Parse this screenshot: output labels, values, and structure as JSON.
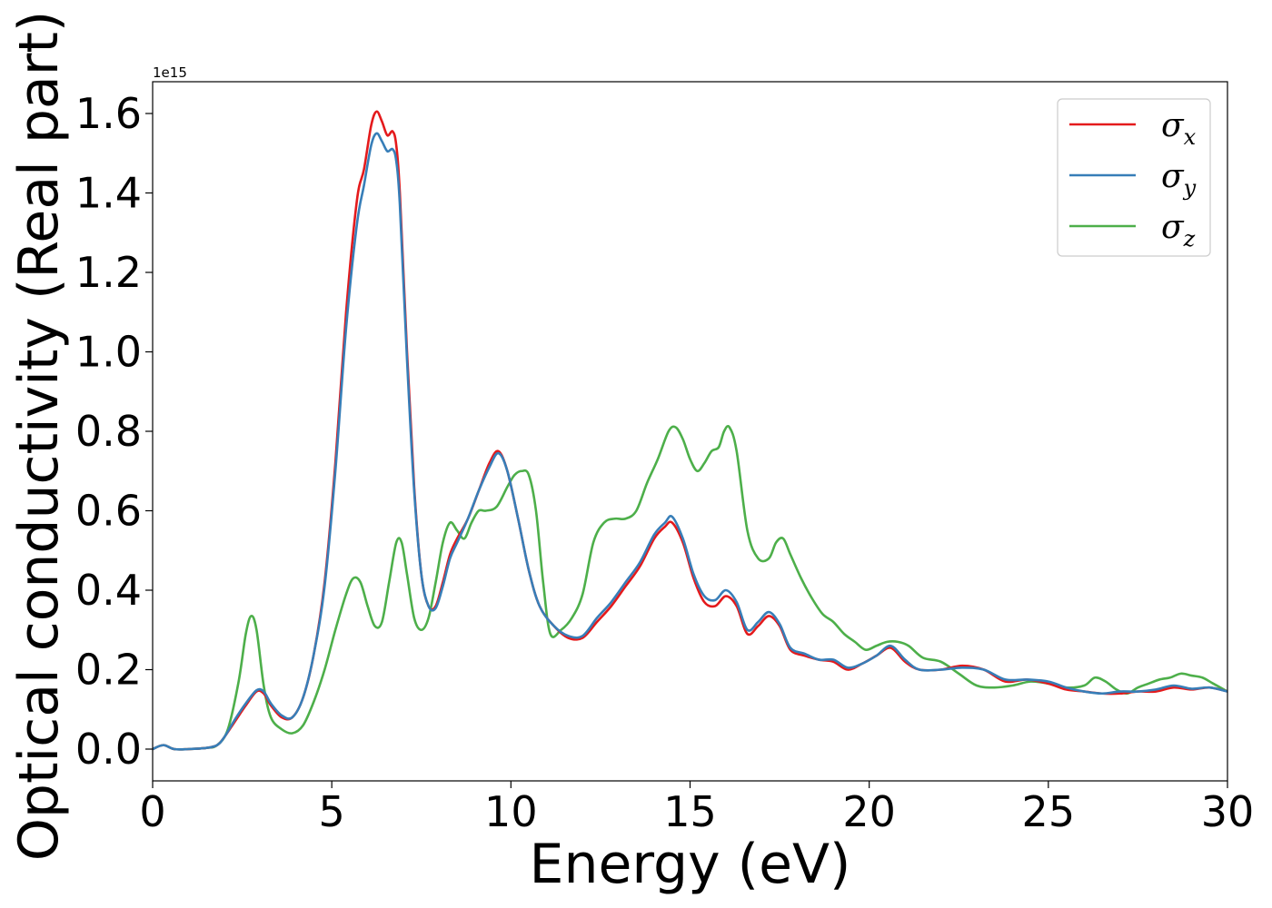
{
  "chart_data": {
    "type": "line",
    "xlabel": "Energy (eV)",
    "ylabel": "Optical conductivity (Real part)",
    "y_offset_text": "1e15",
    "xlim": [
      0,
      30
    ],
    "ylim": [
      -0.08,
      1.68
    ],
    "xticks": [
      0,
      5,
      10,
      15,
      20,
      25,
      30
    ],
    "xtick_labels": [
      "0",
      "5",
      "10",
      "15",
      "20",
      "25",
      "30"
    ],
    "yticks": [
      0.0,
      0.2,
      0.4,
      0.6,
      0.8,
      1.0,
      1.2,
      1.4,
      1.6
    ],
    "ytick_labels": [
      "0.0",
      "0.2",
      "0.4",
      "0.6",
      "0.8",
      "1.0",
      "1.2",
      "1.4",
      "1.6"
    ],
    "grid": false,
    "legend_position": "top-right",
    "series": [
      {
        "name": "σx",
        "legend_main": "σ",
        "legend_sub": "x",
        "color": "#e41a1c",
        "x": [
          0,
          0.3,
          0.6,
          1.0,
          1.5,
          1.8,
          2.0,
          2.3,
          2.6,
          2.9,
          3.1,
          3.3,
          3.6,
          3.9,
          4.2,
          4.5,
          4.8,
          5.1,
          5.4,
          5.7,
          5.9,
          6.1,
          6.25,
          6.4,
          6.55,
          6.7,
          6.8,
          6.9,
          7.1,
          7.3,
          7.5,
          7.7,
          7.9,
          8.1,
          8.3,
          8.5,
          8.8,
          9.1,
          9.4,
          9.65,
          9.9,
          10.2,
          10.5,
          10.8,
          11.2,
          11.6,
          12.0,
          12.4,
          12.8,
          13.2,
          13.6,
          14.0,
          14.3,
          14.5,
          14.8,
          15.1,
          15.4,
          15.7,
          16.0,
          16.3,
          16.6,
          16.9,
          17.2,
          17.5,
          17.8,
          18.2,
          18.6,
          19.0,
          19.4,
          19.8,
          20.2,
          20.6,
          21.0,
          21.4,
          22.0,
          22.6,
          23.2,
          23.8,
          24.4,
          25.0,
          25.5,
          26.0,
          26.5,
          27.0,
          27.5,
          28.0,
          28.5,
          29.0,
          29.5,
          30.0
        ],
        "y": [
          0,
          0.01,
          0.0,
          0.0,
          0.003,
          0.01,
          0.03,
          0.07,
          0.11,
          0.145,
          0.14,
          0.11,
          0.08,
          0.08,
          0.13,
          0.24,
          0.42,
          0.72,
          1.1,
          1.38,
          1.46,
          1.57,
          1.605,
          1.58,
          1.545,
          1.555,
          1.52,
          1.4,
          1.0,
          0.66,
          0.44,
          0.36,
          0.36,
          0.42,
          0.49,
          0.53,
          0.58,
          0.65,
          0.72,
          0.75,
          0.7,
          0.58,
          0.45,
          0.36,
          0.31,
          0.28,
          0.28,
          0.32,
          0.36,
          0.41,
          0.46,
          0.53,
          0.56,
          0.57,
          0.52,
          0.43,
          0.37,
          0.36,
          0.385,
          0.36,
          0.29,
          0.31,
          0.335,
          0.31,
          0.25,
          0.235,
          0.225,
          0.22,
          0.2,
          0.215,
          0.235,
          0.255,
          0.22,
          0.2,
          0.2,
          0.21,
          0.2,
          0.17,
          0.175,
          0.165,
          0.15,
          0.145,
          0.14,
          0.14,
          0.145,
          0.145,
          0.155,
          0.15,
          0.155,
          0.145
        ]
      },
      {
        "name": "σy",
        "legend_main": "σ",
        "legend_sub": "y",
        "color": "#377eb8",
        "x": [
          0,
          0.3,
          0.6,
          1.0,
          1.5,
          1.8,
          2.0,
          2.3,
          2.6,
          2.9,
          3.1,
          3.3,
          3.6,
          3.9,
          4.2,
          4.5,
          4.8,
          5.1,
          5.4,
          5.7,
          5.9,
          6.1,
          6.25,
          6.4,
          6.55,
          6.7,
          6.8,
          6.9,
          7.1,
          7.3,
          7.5,
          7.7,
          7.9,
          8.1,
          8.3,
          8.5,
          8.8,
          9.1,
          9.4,
          9.65,
          9.9,
          10.2,
          10.5,
          10.8,
          11.2,
          11.6,
          12.0,
          12.4,
          12.8,
          13.2,
          13.6,
          14.0,
          14.3,
          14.5,
          14.8,
          15.1,
          15.4,
          15.7,
          16.0,
          16.3,
          16.6,
          16.9,
          17.2,
          17.5,
          17.8,
          18.2,
          18.6,
          19.0,
          19.4,
          19.8,
          20.2,
          20.6,
          21.0,
          21.4,
          22.0,
          22.6,
          23.2,
          23.8,
          24.4,
          25.0,
          25.5,
          26.0,
          26.5,
          27.0,
          27.5,
          28.0,
          28.5,
          29.0,
          29.5,
          30.0
        ],
        "y": [
          0,
          0.01,
          0.0,
          0.0,
          0.003,
          0.01,
          0.03,
          0.075,
          0.115,
          0.148,
          0.145,
          0.115,
          0.085,
          0.08,
          0.13,
          0.24,
          0.41,
          0.7,
          1.06,
          1.32,
          1.42,
          1.52,
          1.55,
          1.53,
          1.505,
          1.51,
          1.48,
          1.37,
          0.98,
          0.65,
          0.44,
          0.36,
          0.355,
          0.41,
          0.48,
          0.52,
          0.58,
          0.65,
          0.71,
          0.745,
          0.7,
          0.58,
          0.45,
          0.36,
          0.31,
          0.285,
          0.285,
          0.33,
          0.37,
          0.42,
          0.47,
          0.54,
          0.57,
          0.585,
          0.53,
          0.44,
          0.385,
          0.375,
          0.4,
          0.37,
          0.3,
          0.32,
          0.345,
          0.315,
          0.255,
          0.24,
          0.225,
          0.225,
          0.205,
          0.215,
          0.235,
          0.26,
          0.225,
          0.2,
          0.2,
          0.205,
          0.2,
          0.175,
          0.175,
          0.17,
          0.155,
          0.145,
          0.14,
          0.145,
          0.145,
          0.15,
          0.16,
          0.152,
          0.155,
          0.145
        ]
      },
      {
        "name": "σz",
        "legend_main": "σ",
        "legend_sub": "z",
        "color": "#4daf4a",
        "x": [
          0,
          0.3,
          0.6,
          1.0,
          1.5,
          1.8,
          2.1,
          2.4,
          2.6,
          2.75,
          2.9,
          3.1,
          3.3,
          3.6,
          3.9,
          4.2,
          4.5,
          4.8,
          5.1,
          5.4,
          5.6,
          5.8,
          6.0,
          6.2,
          6.4,
          6.6,
          6.8,
          6.95,
          7.1,
          7.3,
          7.5,
          7.7,
          7.9,
          8.1,
          8.3,
          8.5,
          8.7,
          8.9,
          9.1,
          9.3,
          9.6,
          9.9,
          10.1,
          10.3,
          10.5,
          10.7,
          10.9,
          11.1,
          11.4,
          11.7,
          12.0,
          12.3,
          12.6,
          12.9,
          13.2,
          13.5,
          13.8,
          14.1,
          14.4,
          14.6,
          14.8,
          15.0,
          15.2,
          15.4,
          15.6,
          15.8,
          15.95,
          16.1,
          16.3,
          16.6,
          16.9,
          17.2,
          17.4,
          17.6,
          17.8,
          18.1,
          18.4,
          18.7,
          19.0,
          19.3,
          19.6,
          19.9,
          20.2,
          20.5,
          20.8,
          21.1,
          21.5,
          22.0,
          22.5,
          23.0,
          23.5,
          24.0,
          24.5,
          25.0,
          25.5,
          26.0,
          26.3,
          26.6,
          26.9,
          27.2,
          27.5,
          27.8,
          28.1,
          28.4,
          28.7,
          29.0,
          29.3,
          29.6,
          30.0
        ],
        "y": [
          0,
          0.01,
          0.0,
          0.0,
          0.003,
          0.01,
          0.05,
          0.17,
          0.29,
          0.335,
          0.3,
          0.16,
          0.08,
          0.05,
          0.04,
          0.06,
          0.12,
          0.2,
          0.3,
          0.39,
          0.43,
          0.42,
          0.36,
          0.31,
          0.32,
          0.42,
          0.52,
          0.52,
          0.44,
          0.33,
          0.3,
          0.33,
          0.42,
          0.52,
          0.57,
          0.55,
          0.53,
          0.57,
          0.6,
          0.6,
          0.61,
          0.66,
          0.69,
          0.7,
          0.69,
          0.6,
          0.42,
          0.29,
          0.3,
          0.33,
          0.39,
          0.52,
          0.57,
          0.58,
          0.58,
          0.6,
          0.67,
          0.73,
          0.8,
          0.81,
          0.78,
          0.73,
          0.7,
          0.72,
          0.75,
          0.76,
          0.8,
          0.81,
          0.75,
          0.55,
          0.48,
          0.48,
          0.52,
          0.53,
          0.49,
          0.43,
          0.38,
          0.34,
          0.32,
          0.29,
          0.27,
          0.25,
          0.26,
          0.27,
          0.27,
          0.26,
          0.23,
          0.22,
          0.19,
          0.16,
          0.155,
          0.16,
          0.17,
          0.165,
          0.155,
          0.16,
          0.18,
          0.17,
          0.15,
          0.14,
          0.155,
          0.165,
          0.175,
          0.18,
          0.19,
          0.185,
          0.18,
          0.165,
          0.145
        ]
      }
    ]
  }
}
